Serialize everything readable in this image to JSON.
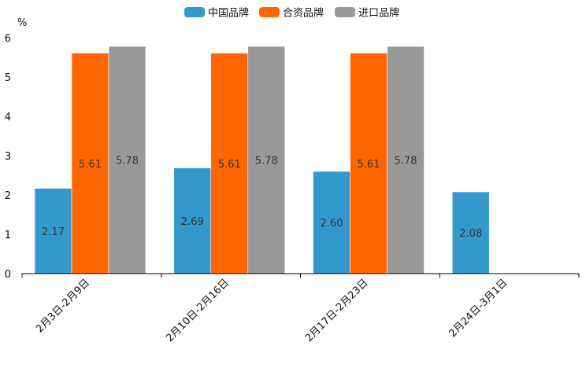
{
  "chart_data": {
    "type": "bar",
    "title": "",
    "xlabel": "",
    "ylabel": "%",
    "ylim": [
      0,
      6
    ],
    "yticks": [
      0,
      1,
      2,
      3,
      4,
      5,
      6
    ],
    "grid": false,
    "legend_position": "top-center",
    "categories": [
      "2月3日-2月9日",
      "2月10日-2月16日",
      "2月17日-2月23日",
      "2月24日-3月1日"
    ],
    "series": [
      {
        "name": "中国品牌",
        "color": "#3399cc",
        "values": [
          2.17,
          2.69,
          2.6,
          2.08
        ],
        "labels": [
          "2.17",
          "2.69",
          "2.60",
          "2.08"
        ]
      },
      {
        "name": "合资品牌",
        "color": "#ff6600",
        "values": [
          5.61,
          5.61,
          5.61,
          null
        ],
        "labels": [
          "5.61",
          "5.61",
          "5.61",
          ""
        ]
      },
      {
        "name": "进口品牌",
        "color": "#999999",
        "values": [
          5.78,
          5.78,
          5.78,
          null
        ],
        "labels": [
          "5.78",
          "5.78",
          "5.78",
          ""
        ]
      }
    ]
  }
}
